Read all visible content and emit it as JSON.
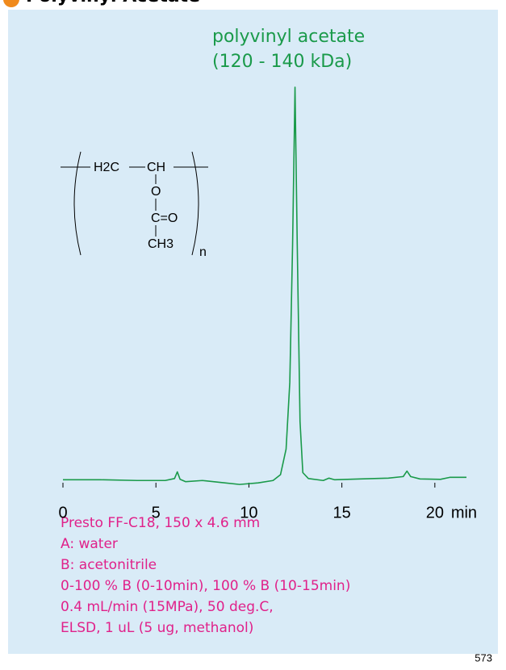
{
  "header": {
    "title": "Polyvinyl Acetate"
  },
  "chart_data": {
    "type": "line",
    "annotations": [
      "polyvinyl acetate",
      "(120 - 140 kDa)"
    ],
    "x": [
      0,
      2,
      4,
      5.5,
      6.0,
      6.15,
      6.3,
      6.6,
      7.5,
      8.5,
      9.5,
      10.5,
      11.3,
      11.7,
      12.0,
      12.2,
      12.35,
      12.48,
      12.6,
      12.75,
      12.9,
      13.2,
      14,
      14.3,
      14.6,
      16,
      17.5,
      18.3,
      18.5,
      18.7,
      19.2,
      20.3,
      20.8,
      21.7
    ],
    "values": [
      0.2,
      0.2,
      0,
      0,
      0.5,
      2.2,
      0.3,
      -0.3,
      0,
      -0.5,
      -1,
      -0.6,
      0,
      1.5,
      8,
      25,
      60,
      100,
      60,
      15,
      2,
      0.5,
      0,
      0.6,
      0.2,
      0.4,
      0.6,
      1,
      2.4,
      1,
      0.4,
      0.3,
      0.8,
      0.8
    ],
    "color": "#1a9a4a",
    "xlim": [
      0,
      21.7
    ],
    "xticks": [
      0,
      5,
      10,
      15,
      20
    ],
    "xlabel": "min",
    "ylim": [
      -2,
      100
    ]
  },
  "structure": {
    "h2c": "H2C",
    "ch": "CH",
    "o": "O",
    "co": "C=O",
    "ch3": "CH3",
    "n": "n"
  },
  "conditions": [
    "Presto FF-C18, 150 x 4.6 mm",
    "A: water",
    "B: acetonitrile",
    "0-100 % B (0-10min), 100 % B (10-15min)",
    "0.4 mL/min (15MPa), 50 deg.C,",
    "ELSD, 1 uL (5 ug, methanol)"
  ],
  "page_number": "573"
}
